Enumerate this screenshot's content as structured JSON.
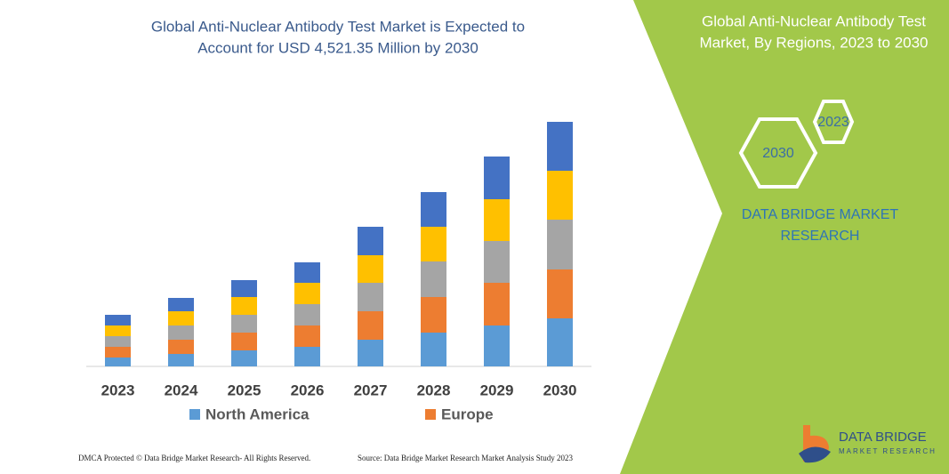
{
  "chart_data": {
    "type": "bar",
    "stacked": true,
    "title": [
      "Global Anti-Nuclear Antibody Test Market is Expected to",
      "Account for USD 4,521.35 Million by 2030"
    ],
    "categories": [
      "2023",
      "2024",
      "2025",
      "2026",
      "2027",
      "2028",
      "2029",
      "2030"
    ],
    "series": [
      {
        "name": "North America",
        "color": "#5b9bd5",
        "values": [
          10,
          14,
          18,
          22,
          30,
          38,
          46,
          54
        ]
      },
      {
        "name": "Europe",
        "color": "#ed7d31",
        "values": [
          12,
          16,
          20,
          24,
          32,
          40,
          48,
          55
        ]
      },
      {
        "color": "#a5a5a5",
        "values": [
          12,
          16,
          20,
          24,
          32,
          40,
          47,
          56
        ]
      },
      {
        "color": "#ffc000",
        "values": [
          12,
          16,
          20,
          24,
          31,
          39,
          47,
          55
        ]
      },
      {
        "color": "#4472c4",
        "values": [
          12,
          15,
          19,
          23,
          32,
          39,
          48,
          55
        ]
      }
    ]
  },
  "side_panel": {
    "title": [
      "Global Anti-Nuclear Antibody Test",
      "Market, By Regions, 2023 to 2030"
    ],
    "hexagons": [
      "2023",
      "2030"
    ],
    "brand": [
      "DATA BRIDGE MARKET",
      "RESEARCH"
    ]
  },
  "logo": {
    "name": "DATA BRIDGE",
    "tagline": "MARKET RESEARCH"
  },
  "footer": {
    "rights": "DMCA Protected © Data Bridge Market Research-  All Rights Reserved.",
    "source": "Source: Data Bridge Market Research  Market Analysis Study 2023"
  }
}
